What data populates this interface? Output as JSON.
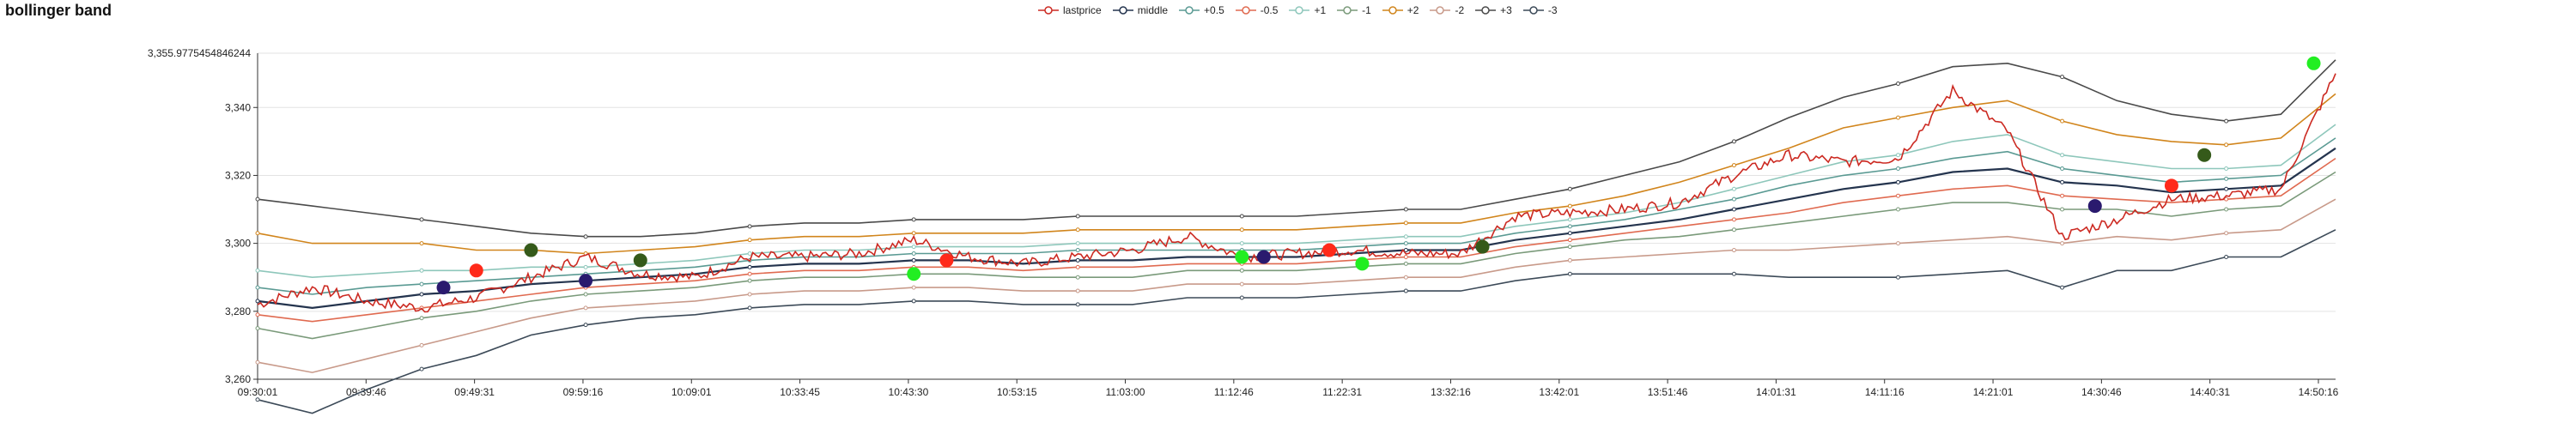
{
  "chart_data": {
    "type": "line",
    "title": "bollinger band",
    "top_value_label": "3,355.9775454846244",
    "ylim": [
      3260,
      3355.9775454846244
    ],
    "y_ticks": [
      3260,
      3280,
      3300,
      3320,
      3340
    ],
    "y_tick_labels": [
      "3,260",
      "3,280",
      "3,300",
      "3,320",
      "3,340"
    ],
    "x_tick_labels": [
      "09:30:01",
      "09:39:46",
      "09:49:31",
      "09:59:16",
      "10:09:01",
      "10:33:45",
      "10:43:30",
      "10:53:15",
      "11:03:00",
      "11:12:46",
      "11:22:31",
      "13:32:16",
      "13:42:01",
      "13:51:46",
      "14:01:31",
      "14:11:16",
      "14:21:01",
      "14:30:46",
      "14:40:31",
      "14:50:16"
    ],
    "legend_placement": "top-center",
    "grid": true,
    "series_style": [
      {
        "name": "lastprice",
        "color": "#cc2a22"
      },
      {
        "name": "middle",
        "color": "#24344e"
      },
      {
        "name": "+0.5",
        "color": "#5a9a93"
      },
      {
        "name": "-0.5",
        "color": "#e06a50"
      },
      {
        "name": "+1",
        "color": "#8ec7bb"
      },
      {
        "name": "-1",
        "color": "#7a9a7a"
      },
      {
        "name": "+2",
        "color": "#d1851c"
      },
      {
        "name": "-2",
        "color": "#c89a8a"
      },
      {
        "name": "+3",
        "color": "#4a4a4a"
      },
      {
        "name": "-3",
        "color": "#3c4a58"
      }
    ],
    "x_index": [
      0,
      5,
      10,
      15,
      20,
      25,
      30,
      35,
      40,
      45,
      50,
      55,
      60,
      65,
      70,
      75,
      80,
      85,
      90,
      95,
      100,
      105,
      110,
      115,
      120,
      125,
      130,
      135,
      140,
      145,
      150,
      155,
      160,
      165,
      170,
      175,
      180,
      185,
      190
    ],
    "series": [
      {
        "name": "lastprice",
        "values": [
          3282,
          3287,
          3283,
          3281,
          3284,
          3290,
          3296,
          3291,
          3290,
          3296,
          3296,
          3297,
          3301,
          3296,
          3294,
          3296,
          3298,
          3302,
          3296,
          3297,
          3298,
          3297,
          3297,
          3308,
          3309,
          3310,
          3312,
          3320,
          3326,
          3324,
          3325,
          3345,
          3333,
          3302,
          3307,
          3313,
          3314,
          3316,
          3350
        ]
      },
      {
        "name": "middle",
        "values": [
          3283,
          3281,
          3283,
          3285,
          3286,
          3288,
          3289,
          3290,
          3291,
          3293,
          3294,
          3294,
          3295,
          3295,
          3294,
          3295,
          3295,
          3296,
          3296,
          3296,
          3297,
          3298,
          3298,
          3301,
          3303,
          3305,
          3307,
          3310,
          3313,
          3316,
          3318,
          3321,
          3322,
          3318,
          3317,
          3315,
          3316,
          3317,
          3328
        ]
      },
      {
        "name": "+0.5",
        "values": [
          3287,
          3285,
          3287,
          3288,
          3289,
          3290,
          3291,
          3292,
          3293,
          3295,
          3296,
          3296,
          3297,
          3297,
          3297,
          3298,
          3298,
          3298,
          3298,
          3298,
          3299,
          3300,
          3300,
          3303,
          3305,
          3307,
          3310,
          3313,
          3317,
          3320,
          3322,
          3325,
          3327,
          3322,
          3320,
          3318,
          3319,
          3320,
          3331
        ]
      },
      {
        "name": "-0.5",
        "values": [
          3279,
          3277,
          3279,
          3281,
          3283,
          3285,
          3287,
          3288,
          3289,
          3291,
          3292,
          3292,
          3293,
          3293,
          3292,
          3293,
          3293,
          3294,
          3294,
          3294,
          3295,
          3296,
          3296,
          3299,
          3301,
          3303,
          3305,
          3307,
          3309,
          3312,
          3314,
          3316,
          3317,
          3314,
          3313,
          3312,
          3313,
          3314,
          3325
        ]
      },
      {
        "name": "+1",
        "values": [
          3292,
          3290,
          3291,
          3292,
          3292,
          3293,
          3293,
          3294,
          3295,
          3297,
          3298,
          3298,
          3299,
          3299,
          3299,
          3300,
          3300,
          3300,
          3300,
          3300,
          3301,
          3302,
          3302,
          3305,
          3307,
          3309,
          3312,
          3316,
          3320,
          3324,
          3326,
          3330,
          3332,
          3326,
          3324,
          3322,
          3322,
          3323,
          3335
        ]
      },
      {
        "name": "-1",
        "values": [
          3275,
          3272,
          3275,
          3278,
          3280,
          3283,
          3285,
          3286,
          3287,
          3289,
          3290,
          3290,
          3291,
          3291,
          3290,
          3290,
          3290,
          3292,
          3292,
          3292,
          3293,
          3294,
          3294,
          3297,
          3299,
          3301,
          3302,
          3304,
          3306,
          3308,
          3310,
          3312,
          3312,
          3310,
          3310,
          3308,
          3310,
          3311,
          3321
        ]
      },
      {
        "name": "+2",
        "values": [
          3303,
          3300,
          3300,
          3300,
          3298,
          3298,
          3297,
          3298,
          3299,
          3301,
          3302,
          3302,
          3303,
          3303,
          3303,
          3304,
          3304,
          3304,
          3304,
          3304,
          3305,
          3306,
          3306,
          3309,
          3311,
          3314,
          3318,
          3323,
          3328,
          3334,
          3337,
          3340,
          3342,
          3336,
          3332,
          3330,
          3329,
          3331,
          3344
        ]
      },
      {
        "name": "-2",
        "values": [
          3265,
          3262,
          3266,
          3270,
          3274,
          3278,
          3281,
          3282,
          3283,
          3285,
          3286,
          3286,
          3287,
          3287,
          3286,
          3286,
          3286,
          3288,
          3288,
          3288,
          3289,
          3290,
          3290,
          3293,
          3295,
          3296,
          3297,
          3298,
          3298,
          3299,
          3300,
          3301,
          3302,
          3300,
          3302,
          3301,
          3303,
          3304,
          3313
        ]
      },
      {
        "name": "+3",
        "values": [
          3313,
          3311,
          3309,
          3307,
          3305,
          3303,
          3302,
          3302,
          3303,
          3305,
          3306,
          3306,
          3307,
          3307,
          3307,
          3308,
          3308,
          3308,
          3308,
          3308,
          3309,
          3310,
          3310,
          3313,
          3316,
          3320,
          3324,
          3330,
          3337,
          3343,
          3347,
          3352,
          3353,
          3349,
          3342,
          3338,
          3336,
          3338,
          3354
        ]
      },
      {
        "name": "-3",
        "values": [
          3254,
          3250,
          3257,
          3263,
          3267,
          3273,
          3276,
          3278,
          3279,
          3281,
          3282,
          3282,
          3283,
          3283,
          3282,
          3282,
          3282,
          3284,
          3284,
          3284,
          3285,
          3286,
          3286,
          3289,
          3291,
          3291,
          3291,
          3291,
          3290,
          3290,
          3290,
          3291,
          3292,
          3287,
          3292,
          3292,
          3296,
          3296,
          3304
        ]
      }
    ]
  }
}
